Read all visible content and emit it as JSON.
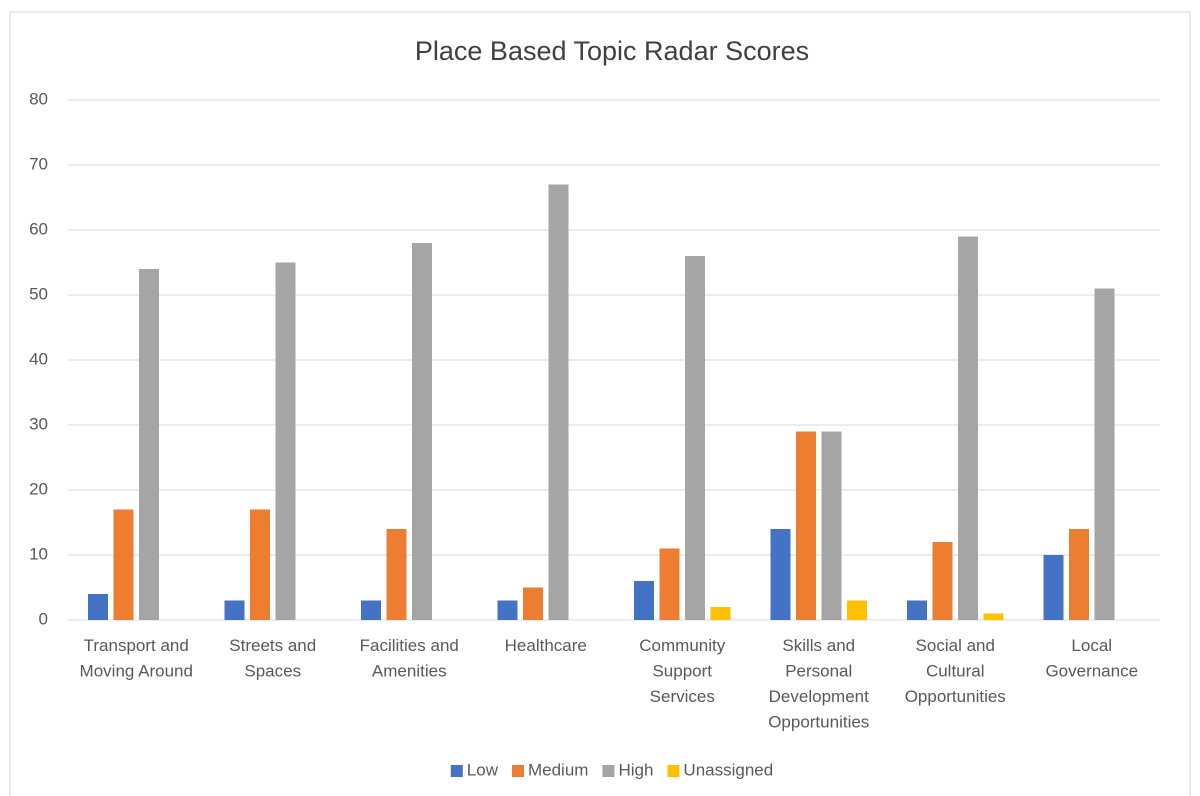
{
  "chart_data": {
    "type": "bar",
    "title": "Place Based Topic Radar Scores",
    "categories": [
      "Transport and Moving Around",
      "Streets and Spaces",
      "Facilities and Amenities",
      "Healthcare",
      "Community Support Services",
      "Skills and Personal Development Opportunities",
      "Social and Cultural Opportunities",
      "Local Governance"
    ],
    "series": [
      {
        "name": "Low",
        "color": "#4472c4",
        "values": [
          4,
          3,
          3,
          3,
          6,
          14,
          3,
          10
        ]
      },
      {
        "name": "Medium",
        "color": "#ed7d31",
        "values": [
          17,
          17,
          14,
          5,
          11,
          29,
          12,
          14
        ]
      },
      {
        "name": "High",
        "color": "#a5a5a5",
        "values": [
          54,
          55,
          58,
          67,
          56,
          29,
          59,
          51
        ]
      },
      {
        "name": "Unassigned",
        "color": "#ffc000",
        "values": [
          0,
          0,
          0,
          0,
          2,
          3,
          1,
          0
        ]
      }
    ],
    "ylim": [
      0,
      80
    ],
    "yticks": [
      0,
      10,
      20,
      30,
      40,
      50,
      60,
      70,
      80
    ],
    "grid": true,
    "legend": "bottom"
  }
}
